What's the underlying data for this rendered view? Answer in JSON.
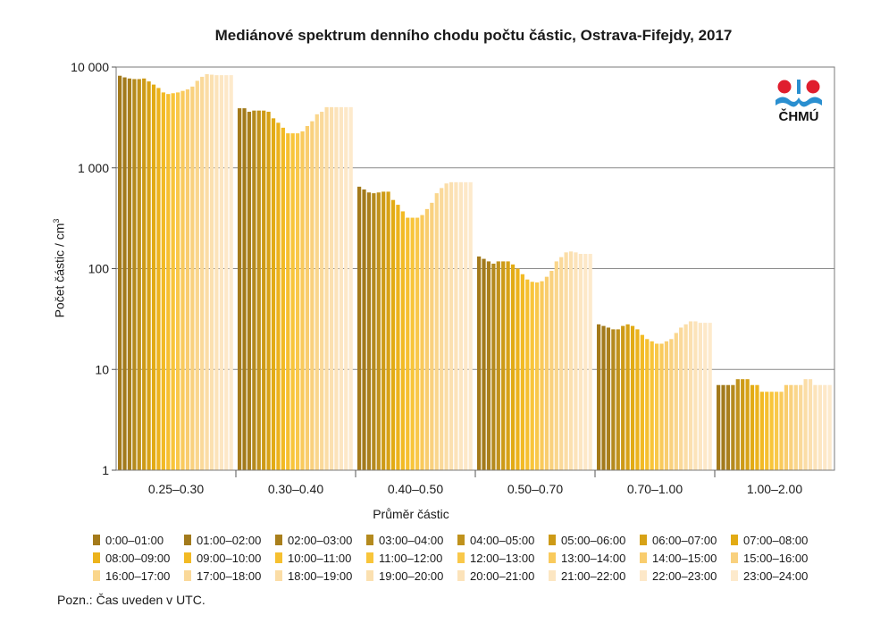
{
  "chart_data": {
    "type": "bar",
    "title": "Mediánové spektrum denního chodu počtu částic, Ostrava-Fifejdy, 2017",
    "xlabel": "Průměr částic",
    "ylabel": "Počet částic / cm",
    "ylabel_sup": "3",
    "yscale": "log",
    "ylim": [
      1,
      10000
    ],
    "yticks": [
      {
        "value": 1,
        "label": "1"
      },
      {
        "value": 10,
        "label": "10"
      },
      {
        "value": 100,
        "label": "100"
      },
      {
        "value": 1000,
        "label": "1 000"
      },
      {
        "value": 10000,
        "label": "10 000"
      }
    ],
    "grid": true,
    "categories": [
      "0.25–0.30",
      "0.30–0.40",
      "0.40–0.50",
      "0.50–0.70",
      "0.70–1.00",
      "1.00–2.00"
    ],
    "series_labels": [
      "0:00–01:00",
      "01:00–02:00",
      "02:00–03:00",
      "03:00–04:00",
      "04:00–05:00",
      "05:00–06:00",
      "06:00–07:00",
      "07:00–08:00",
      "08:00–09:00",
      "09:00–10:00",
      "10:00–11:00",
      "11:00–12:00",
      "12:00–13:00",
      "13:00–14:00",
      "14:00–15:00",
      "15:00–16:00",
      "16:00–17:00",
      "17:00–18:00",
      "18:00–19:00",
      "19:00–20:00",
      "20:00–21:00",
      "21:00–22:00",
      "22:00–23:00",
      "23:00–24:00"
    ],
    "series_colors": [
      "#a47a1a",
      "#a27a1c",
      "#a97f1c",
      "#b48a1e",
      "#c0921c",
      "#cd9a16",
      "#d7a216",
      "#e2ab14",
      "#ecb31c",
      "#f2ba24",
      "#f6c030",
      "#f8c53a",
      "#f9c84a",
      "#f9ca5c",
      "#f9cd6e",
      "#f9d17e",
      "#fad68c",
      "#fad99a",
      "#fbdda6",
      "#fbe0b0",
      "#fce3ba",
      "#fce6c2",
      "#fde8c8",
      "#fdeacc"
    ],
    "values": [
      [
        8200,
        7900,
        7700,
        7600,
        7600,
        7700,
        7200,
        6700,
        6200,
        5600,
        5400,
        5500,
        5600,
        5800,
        6000,
        6400,
        7300,
        8000,
        8500,
        8400,
        8300,
        8300,
        8300,
        8300
      ],
      [
        3900,
        3900,
        3600,
        3700,
        3700,
        3700,
        3600,
        3100,
        2800,
        2500,
        2200,
        2200,
        2200,
        2300,
        2600,
        2900,
        3400,
        3600,
        4000,
        4000,
        4000,
        4000,
        4000,
        4000
      ],
      [
        650,
        610,
        570,
        560,
        570,
        580,
        580,
        480,
        430,
        370,
        320,
        320,
        320,
        340,
        390,
        450,
        560,
        630,
        700,
        720,
        720,
        720,
        720,
        720
      ],
      [
        132,
        125,
        118,
        112,
        118,
        118,
        118,
        110,
        100,
        88,
        78,
        74,
        73,
        75,
        83,
        95,
        118,
        130,
        145,
        148,
        145,
        140,
        140,
        140
      ],
      [
        28,
        27,
        26,
        25,
        25,
        27,
        28,
        27,
        25,
        22,
        20,
        19,
        18,
        18,
        19,
        20,
        23,
        26,
        28,
        30,
        30,
        29,
        29,
        29
      ],
      [
        7,
        7,
        7,
        7,
        8,
        8,
        8,
        7,
        7,
        6,
        6,
        6,
        6,
        6,
        7,
        7,
        7,
        7,
        8,
        8,
        7,
        7,
        7,
        7
      ]
    ]
  },
  "note": "Pozn.: Čas uveden v UTC.",
  "logo": {
    "text": "ČHMÚ",
    "colors": [
      "#e01e2e",
      "#2a8fd0"
    ]
  }
}
